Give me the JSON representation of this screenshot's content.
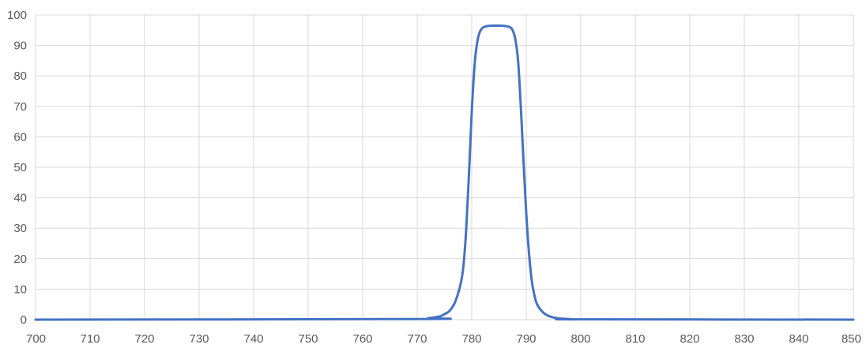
{
  "chart_data": {
    "type": "line",
    "title": "",
    "xlabel": "",
    "ylabel": "",
    "xlim": [
      700,
      850
    ],
    "ylim": [
      0,
      100
    ],
    "x_ticks": [
      700,
      710,
      720,
      730,
      740,
      750,
      760,
      770,
      780,
      790,
      800,
      810,
      820,
      830,
      840,
      850
    ],
    "y_ticks": [
      0,
      10,
      20,
      30,
      40,
      50,
      60,
      70,
      80,
      90,
      100
    ],
    "grid": true,
    "legend": "none",
    "series": [
      {
        "color": "#4472c4",
        "x": [
          700,
          770,
          772,
          774,
          775,
          776,
          777,
          778,
          778.5,
          779,
          779.5,
          780,
          780.5,
          781,
          781.5,
          782,
          782.5,
          783,
          784,
          785,
          786,
          787,
          787.5,
          788,
          788.5,
          789,
          789.5,
          790,
          790.5,
          791,
          791.5,
          792,
          793,
          794,
          795,
          796,
          798,
          800,
          850
        ],
        "y": [
          0,
          0.2,
          0.5,
          1,
          1.8,
          3,
          6,
          12,
          18,
          30,
          48,
          68,
          83,
          91,
          94.5,
          95.8,
          96.2,
          96.4,
          96.5,
          96.5,
          96.4,
          96,
          95,
          92,
          85,
          70,
          52,
          35,
          22,
          13,
          8,
          5,
          2.5,
          1.3,
          0.7,
          0.4,
          0.2,
          0.1,
          0
        ]
      }
    ]
  }
}
